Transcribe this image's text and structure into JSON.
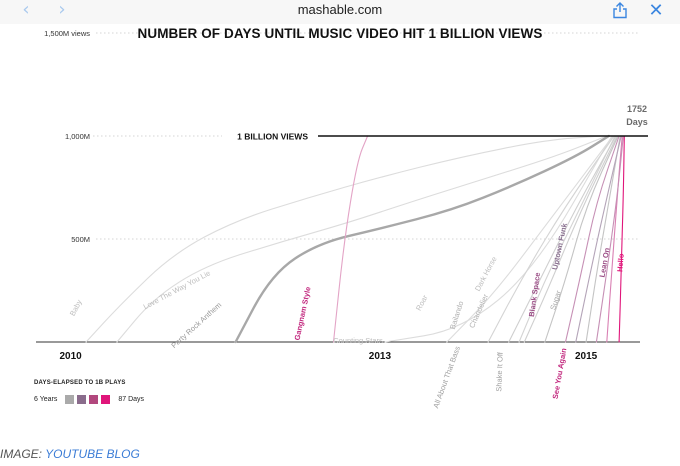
{
  "browser": {
    "back_glyph": "‹",
    "forward_glyph": "›",
    "url": "mashable.com",
    "close_glyph": "✕"
  },
  "chart_data": {
    "type": "line",
    "title": "NUMBER OF DAYS UNTIL MUSIC VIDEO HIT 1 BILLION VIEWS",
    "y_ticks": [
      "1,500M views",
      "1,000M",
      "500M"
    ],
    "x_ticks": [
      "2010",
      "2013",
      "2015"
    ],
    "ylim": [
      0,
      1500
    ],
    "xlim": [
      2009.8,
      2015.6
    ],
    "billion_label": "1 BILLION VIEWS",
    "end_note": [
      "1752",
      "Days"
    ],
    "series": [
      {
        "name": "Baby",
        "color": "#dcdcdc",
        "x": [
          2010.15,
          2010.5,
          2011.0,
          2011.6,
          2012.3,
          2013.0,
          2013.8,
          2014.6,
          2015.15
        ],
        "y": [
          0,
          190,
          430,
          590,
          700,
          800,
          900,
          980,
          1000
        ]
      },
      {
        "name": "Love The Way You Lie",
        "color": "#dcdcdc",
        "x": [
          2010.45,
          2010.8,
          2011.3,
          2012.0,
          2012.7,
          2013.3,
          2014.0,
          2014.7,
          2015.2
        ],
        "y": [
          0,
          210,
          370,
          480,
          580,
          680,
          790,
          900,
          1000
        ]
      },
      {
        "name": "Party Rock Anthem",
        "color": "#a8a8a8",
        "x": [
          2011.6,
          2011.95,
          2012.4,
          2013.0,
          2013.7,
          2014.3,
          2014.9,
          2015.22
        ],
        "y": [
          0,
          330,
          480,
          550,
          640,
          760,
          900,
          1000
        ]
      },
      {
        "name": "Gangnam Style",
        "color": "#e3a4c6",
        "x": [
          2012.55,
          2012.65,
          2012.78,
          2012.88
        ],
        "y": [
          0,
          480,
          880,
          1000
        ]
      },
      {
        "name": "Counting Stars",
        "color": "#dcdcdc",
        "x": [
          2013.05,
          2013.8,
          2014.5,
          2015.25
        ],
        "y": [
          0,
          60,
          350,
          1000
        ]
      },
      {
        "name": "Roar",
        "color": "#dcdcdc",
        "x": [
          2013.65,
          2014.1,
          2014.6,
          2015.26
        ],
        "y": [
          0,
          230,
          560,
          1000
        ]
      },
      {
        "name": "Dark Horse",
        "color": "#d4d4d4",
        "x": [
          2014.05,
          2014.4,
          2014.8,
          2015.27
        ],
        "y": [
          0,
          330,
          660,
          1000
        ]
      },
      {
        "name": "All About That Bass",
        "color": "#d4d4d4",
        "x": [
          2014.35,
          2014.6,
          2014.95,
          2015.28
        ],
        "y": [
          0,
          300,
          660,
          1000
        ]
      },
      {
        "name": "Bailando",
        "color": "#cfcfcf",
        "x": [
          2014.25,
          2014.55,
          2014.9,
          2015.29
        ],
        "y": [
          0,
          300,
          650,
          1000
        ]
      },
      {
        "name": "Chandelier",
        "color": "#cfcfcf",
        "x": [
          2014.4,
          2014.65,
          2014.95,
          2015.3
        ],
        "y": [
          0,
          280,
          640,
          1000
        ]
      },
      {
        "name": "Shake It Off",
        "color": "#c4c4c4",
        "x": [
          2014.6,
          2014.8,
          2015.0,
          2015.31
        ],
        "y": [
          0,
          300,
          660,
          1000
        ]
      },
      {
        "name": "Blank Space",
        "color": "#c690b5",
        "x": [
          2014.8,
          2014.95,
          2015.1,
          2015.32
        ],
        "y": [
          0,
          330,
          680,
          1000
        ]
      },
      {
        "name": "Sugar",
        "color": "#c4c4c4",
        "x": [
          2015.0,
          2015.1,
          2015.22,
          2015.33
        ],
        "y": [
          0,
          330,
          680,
          1000
        ]
      },
      {
        "name": "Uptown Funk",
        "color": "#b4a4b8",
        "x": [
          2014.9,
          2015.05,
          2015.2,
          2015.34
        ],
        "y": [
          0,
          360,
          700,
          1000
        ]
      },
      {
        "name": "See You Again",
        "color": "#d980b3",
        "x": [
          2015.2,
          2015.25,
          2015.3,
          2015.35
        ],
        "y": [
          0,
          350,
          700,
          1000
        ]
      },
      {
        "name": "Lean On",
        "color": "#c690b5",
        "x": [
          2015.1,
          2015.2,
          2015.3,
          2015.36
        ],
        "y": [
          0,
          340,
          700,
          1000
        ]
      },
      {
        "name": "Hello",
        "color": "#e0157a",
        "x": [
          2015.32,
          2015.34,
          2015.36,
          2015.37
        ],
        "y": [
          0,
          350,
          700,
          1000
        ]
      }
    ],
    "labels": [
      {
        "text": "Baby",
        "color": "#bdbdbd",
        "bold": false
      },
      {
        "text": "Love The Way You Lie",
        "color": "#bdbdbd",
        "bold": false
      },
      {
        "text": "Party Rock Anthem",
        "color": "#9a9a9a",
        "bold": false
      },
      {
        "text": "Gangnam Style",
        "color": "#c2287e",
        "bold": true
      },
      {
        "text": "Counting Stars",
        "color": "#bdbdbd",
        "bold": false
      },
      {
        "text": "Roar",
        "color": "#bdbdbd",
        "bold": false
      },
      {
        "text": "Dark Horse",
        "color": "#bdbdbd",
        "bold": false
      },
      {
        "text": "Bailando",
        "color": "#b0b0b0",
        "bold": false
      },
      {
        "text": "Chandelier",
        "color": "#b0b0b0",
        "bold": false
      },
      {
        "text": "All About That Bass",
        "color": "#9f9f9f",
        "bold": false
      },
      {
        "text": "Shake It Off",
        "color": "#9f9f9f",
        "bold": false
      },
      {
        "text": "Blank Space",
        "color": "#9b4e86",
        "bold": true
      },
      {
        "text": "Sugar",
        "color": "#a8a8a8",
        "bold": false
      },
      {
        "text": "Uptown Funk",
        "color": "#8a7090",
        "bold": true
      },
      {
        "text": "See You Again",
        "color": "#c2287e",
        "bold": true
      },
      {
        "text": "Lean On",
        "color": "#9b4e86",
        "bold": true
      },
      {
        "text": "Hello",
        "color": "#e0157a",
        "bold": true
      }
    ],
    "legend": {
      "title": "DAYS-ELAPSED TO 1B PLAYS",
      "left": "6 Years",
      "right": "87 Days",
      "swatches": [
        "#aaaaaa",
        "#8a6c8c",
        "#b2487e",
        "#e0157a"
      ]
    }
  },
  "caption": {
    "prefix": "IMAGE: ",
    "link": "YOUTUBE BLOG"
  },
  "colors": {
    "link": "#3b7cd6",
    "accent_pink": "#e0157a"
  }
}
